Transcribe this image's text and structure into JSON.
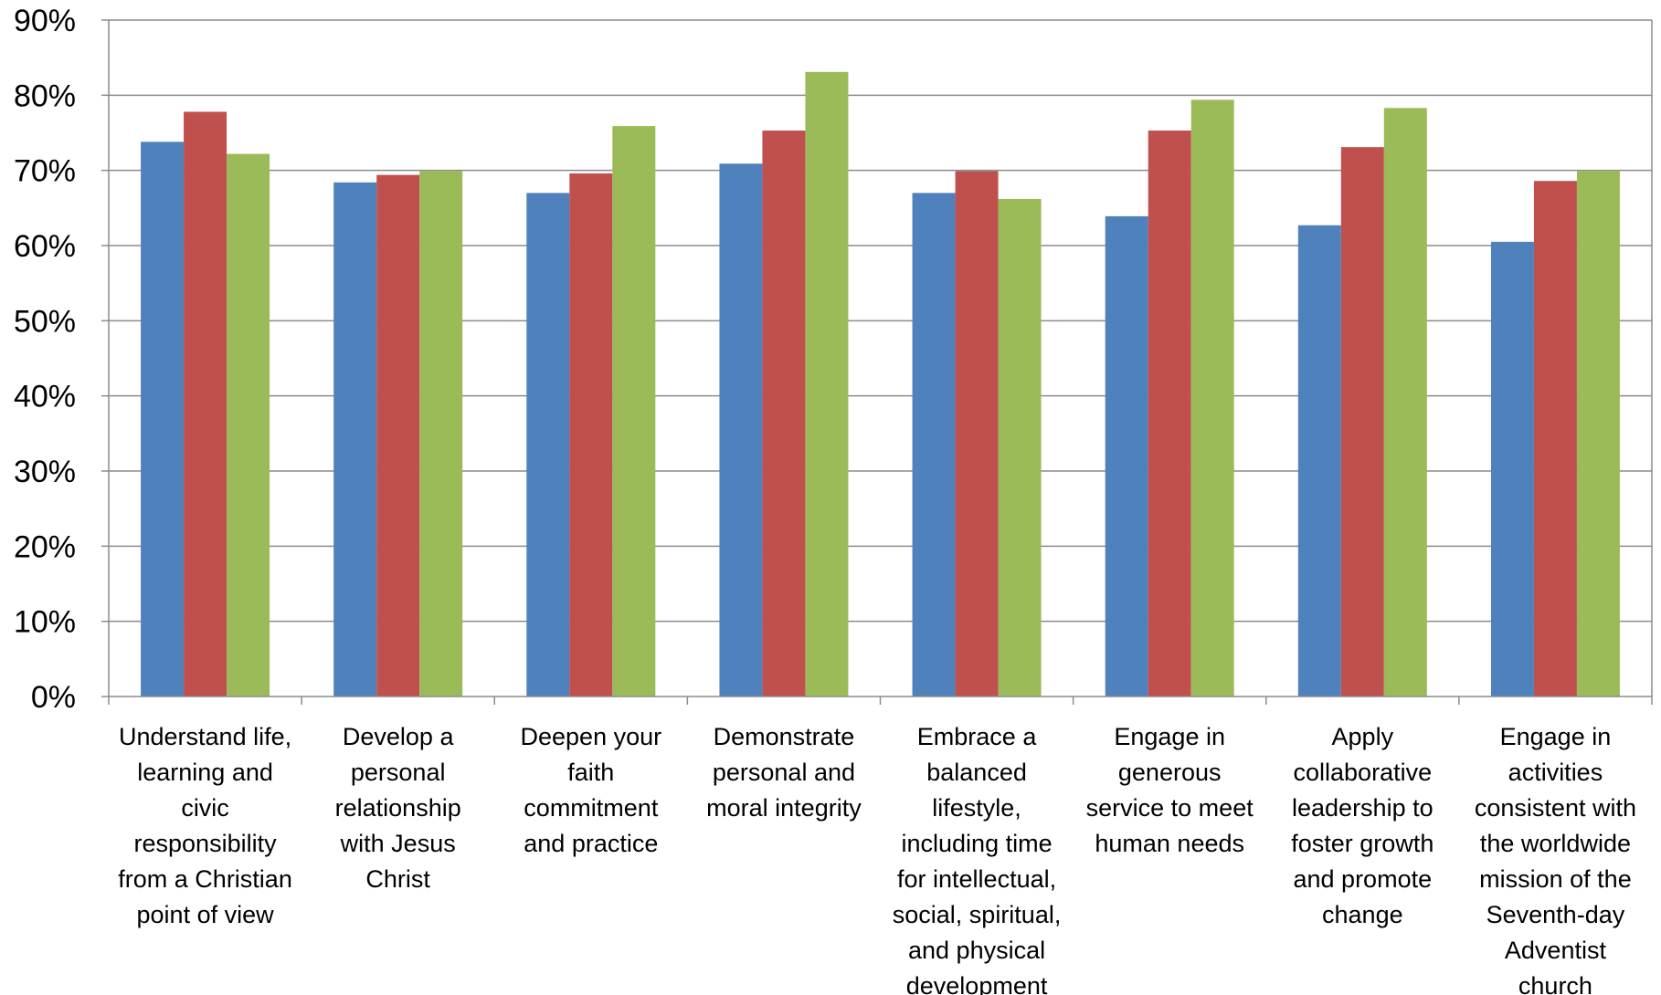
{
  "chart_data": {
    "type": "bar",
    "title": "",
    "xlabel": "",
    "ylabel": "",
    "ylim": [
      0,
      0.9
    ],
    "yticks": [
      "0%",
      "10%",
      "20%",
      "30%",
      "40%",
      "50%",
      "60%",
      "70%",
      "80%",
      "90%"
    ],
    "grid": true,
    "legend": "none",
    "categories": [
      [
        "Understand life,",
        "learning and",
        "civic",
        "responsibility",
        "from a Christian",
        "point of view"
      ],
      [
        "Develop a",
        "personal",
        "relationship",
        "with Jesus",
        "Christ"
      ],
      [
        "Deepen your",
        "faith",
        "commitment",
        "and practice"
      ],
      [
        "Demonstrate",
        "personal and",
        "moral integrity"
      ],
      [
        "Embrace a",
        "balanced",
        "lifestyle,",
        "including time",
        "for intellectual,",
        "social, spiritual,",
        "and physical",
        "development"
      ],
      [
        "Engage in",
        "generous",
        "service to meet",
        "human needs"
      ],
      [
        "Apply",
        "collaborative",
        "leadership to",
        "foster growth",
        "and promote",
        "change"
      ],
      [
        "Engage in",
        "activities",
        "consistent with",
        "the worldwide",
        "mission of the",
        "Seventh-day",
        "Adventist",
        "church"
      ]
    ],
    "series": [
      {
        "color": "#4F81BD",
        "values": [
          0.738,
          0.684,
          0.67,
          0.709,
          0.67,
          0.639,
          0.627,
          0.605
        ]
      },
      {
        "color": "#C0504D",
        "values": [
          0.778,
          0.694,
          0.696,
          0.753,
          0.699,
          0.753,
          0.731,
          0.686
        ]
      },
      {
        "color": "#9BBB59",
        "values": [
          0.722,
          0.699,
          0.759,
          0.831,
          0.662,
          0.794,
          0.783,
          0.699
        ]
      }
    ]
  }
}
